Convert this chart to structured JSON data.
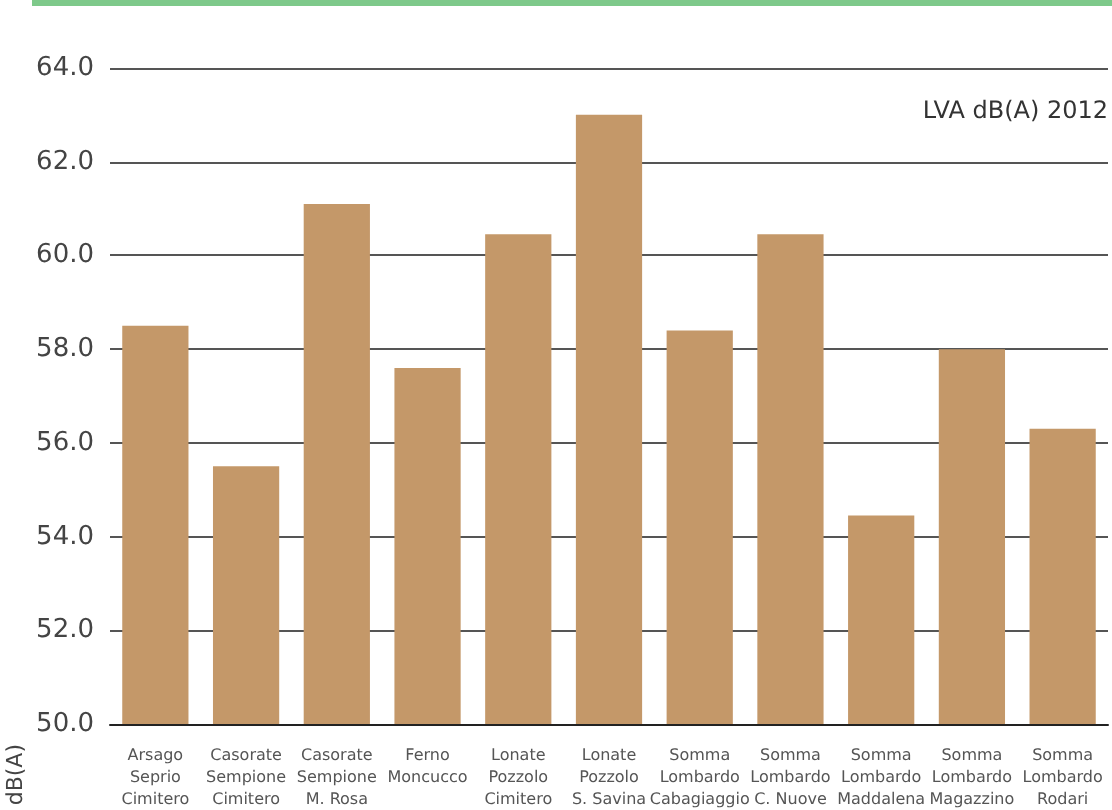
{
  "chart_data": {
    "type": "bar",
    "categories": [
      "Arsago\nSeprio\nCimitero",
      "Casorate\nSempione\nCimitero",
      "Casorate\nSempione\nM. Rosa",
      "Ferno\nMoncucco",
      "Lonate\nPozzolo\nCimitero",
      "Lonate\nPozzolo\nS. Savina",
      "Somma\nLombardo\nCabagiaggio",
      "Somma\nLombardo\nC. Nuove",
      "Somma\nLombardo\nMaddalena",
      "Somma\nLombardo\nMagazzino",
      "Somma\nLombardo\nRodari"
    ],
    "values": [
      58.5,
      55.5,
      61.1,
      57.6,
      60.45,
      63.0,
      58.4,
      60.45,
      54.45,
      58.0,
      56.3
    ],
    "color": "#c49869",
    "ylabel": "dB(A)",
    "annotations": [
      "LVA dB(A) 2012"
    ],
    "ylim": [
      50,
      64
    ],
    "yticks": [
      {
        "value": 50,
        "label": "50.0"
      },
      {
        "value": 52,
        "label": "52.0"
      },
      {
        "value": 54,
        "label": "54.0"
      },
      {
        "value": 56,
        "label": "56.0"
      },
      {
        "value": 58,
        "label": "58.0"
      },
      {
        "value": 60,
        "label": "60.0"
      },
      {
        "value": 62,
        "label": "62.0"
      },
      {
        "value": 64,
        "label": "64.0"
      }
    ],
    "grid": "y"
  }
}
